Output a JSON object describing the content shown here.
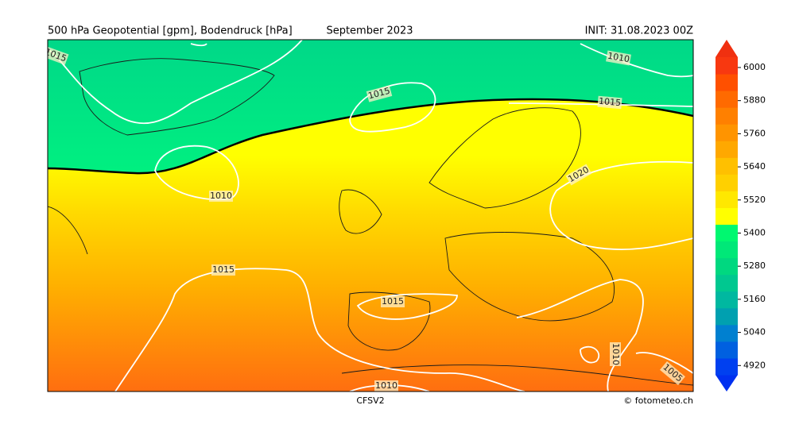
{
  "header": {
    "title": "500 hPa Geopotential [gpm], Bodendruck [hPa]",
    "period": "September 2023",
    "init": "INIT: 31.08.2023 00Z"
  },
  "footer": {
    "model": "CFSV2",
    "credit": "© fotometeo.ch"
  },
  "colorbar": {
    "ticks": [
      "6000",
      "5880",
      "5760",
      "5640",
      "5520",
      "5400",
      "5280",
      "5160",
      "5040",
      "4920"
    ]
  },
  "contour_labels": [
    "1015",
    "1010",
    "1015",
    "1015",
    "1010",
    "1020",
    "1015",
    "1015",
    "1010",
    "1005",
    "1010"
  ]
}
